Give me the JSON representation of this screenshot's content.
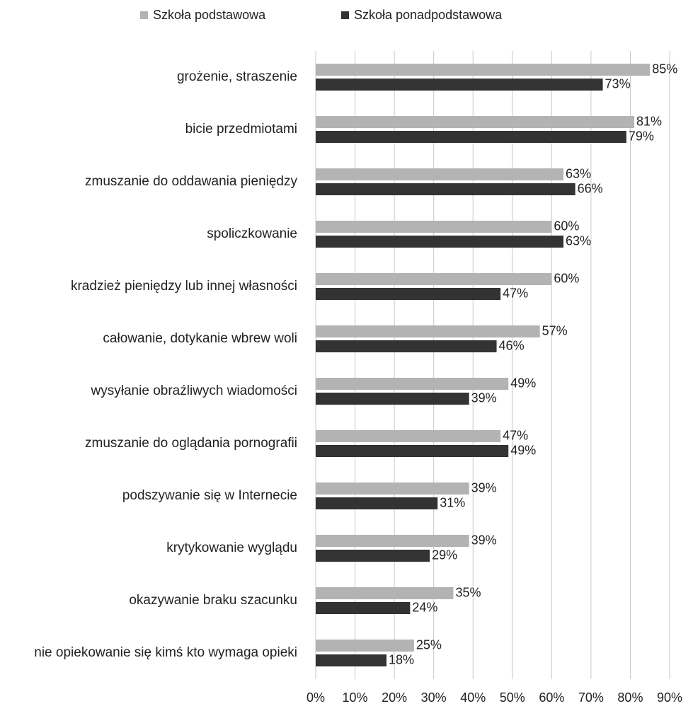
{
  "chart_data": {
    "type": "hbar",
    "categories": [
      "grożenie, straszenie",
      "bicie przedmiotami",
      "zmuszanie do oddawania pieniędzy",
      "spoliczkowanie",
      "kradzież pieniędzy lub innej własności",
      "całowanie, dotykanie wbrew woli",
      "wysyłanie obraźliwych wiadomości",
      "zmuszanie do oglądania pornografii",
      "podszywanie się w Internecie",
      "krytykowanie wyglądu",
      "okazywanie braku szacunku",
      "nie opiekowanie się kimś kto wymaga opieki"
    ],
    "series": [
      {
        "name": "Szkoła podstawowa",
        "color": "#b3b3b3",
        "values": [
          85,
          81,
          63,
          60,
          60,
          57,
          49,
          47,
          39,
          39,
          35,
          25
        ],
        "value_labels": [
          "85%",
          "81%",
          "63%",
          "60%",
          "60%",
          "57%",
          "49%",
          "47%",
          "39%",
          "39%",
          "35%",
          "25%"
        ]
      },
      {
        "name": "Szkoła ponadpodstawowa",
        "color": "#333333",
        "values": [
          73,
          79,
          66,
          63,
          47,
          46,
          39,
          49,
          31,
          29,
          24,
          18
        ],
        "value_labels": [
          "73%",
          "79%",
          "66%",
          "63%",
          "47%",
          "46%",
          "39%",
          "49%",
          "31%",
          "29%",
          "24%",
          "18%"
        ]
      }
    ],
    "xlim": [
      0,
      90
    ],
    "xticks": [
      {
        "value": 0,
        "label": "0%"
      },
      {
        "value": 10,
        "label": "10%"
      },
      {
        "value": 20,
        "label": "20%"
      },
      {
        "value": 30,
        "label": "30%"
      },
      {
        "value": 40,
        "label": "40%"
      },
      {
        "value": 50,
        "label": "50%"
      },
      {
        "value": 60,
        "label": "60%"
      },
      {
        "value": 70,
        "label": "70%"
      },
      {
        "value": 80,
        "label": "80%"
      },
      {
        "value": 90,
        "label": "90%"
      }
    ],
    "grid": true,
    "legend": "top"
  }
}
